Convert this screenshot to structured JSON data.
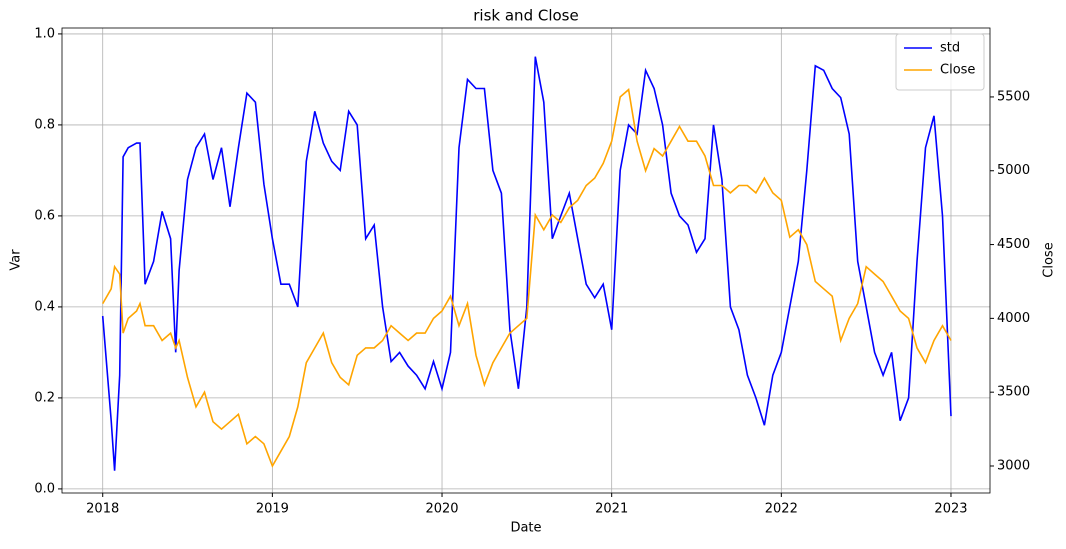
{
  "chart_data": {
    "type": "line",
    "title": "risk and Close",
    "xlabel": "Date",
    "ylabel": "Var",
    "y2label": "Close",
    "x": [
      2018.0,
      2018.05,
      2018.07,
      2018.1,
      2018.12,
      2018.15,
      2018.2,
      2018.22,
      2018.25,
      2018.3,
      2018.35,
      2018.4,
      2018.43,
      2018.45,
      2018.5,
      2018.55,
      2018.6,
      2018.65,
      2018.7,
      2018.75,
      2018.8,
      2018.85,
      2018.9,
      2018.95,
      2019.0,
      2019.05,
      2019.1,
      2019.15,
      2019.2,
      2019.25,
      2019.3,
      2019.35,
      2019.4,
      2019.45,
      2019.5,
      2019.55,
      2019.6,
      2019.65,
      2019.7,
      2019.75,
      2019.8,
      2019.85,
      2019.9,
      2019.95,
      2020.0,
      2020.05,
      2020.1,
      2020.15,
      2020.2,
      2020.25,
      2020.3,
      2020.35,
      2020.4,
      2020.45,
      2020.5,
      2020.55,
      2020.6,
      2020.65,
      2020.7,
      2020.75,
      2020.8,
      2020.85,
      2020.9,
      2020.95,
      2021.0,
      2021.05,
      2021.1,
      2021.15,
      2021.2,
      2021.25,
      2021.3,
      2021.35,
      2021.4,
      2021.45,
      2021.5,
      2021.55,
      2021.6,
      2021.65,
      2021.7,
      2021.75,
      2021.8,
      2021.85,
      2021.9,
      2021.95,
      2022.0,
      2022.05,
      2022.1,
      2022.15,
      2022.2,
      2022.25,
      2022.3,
      2022.35,
      2022.4,
      2022.45,
      2022.5,
      2022.55,
      2022.6,
      2022.65,
      2022.7,
      2022.75,
      2022.8,
      2022.85,
      2022.9,
      2022.95,
      2023.0
    ],
    "series": [
      {
        "name": "std",
        "color": "#0000ff",
        "values": [
          0.38,
          0.15,
          0.04,
          0.25,
          0.73,
          0.75,
          0.76,
          0.76,
          0.45,
          0.5,
          0.61,
          0.55,
          0.3,
          0.48,
          0.68,
          0.75,
          0.78,
          0.68,
          0.75,
          0.62,
          0.75,
          0.87,
          0.85,
          0.67,
          0.55,
          0.45,
          0.45,
          0.4,
          0.72,
          0.83,
          0.76,
          0.72,
          0.7,
          0.83,
          0.8,
          0.55,
          0.58,
          0.4,
          0.28,
          0.3,
          0.27,
          0.25,
          0.22,
          0.28,
          0.22,
          0.3,
          0.75,
          0.9,
          0.88,
          0.88,
          0.7,
          0.65,
          0.35,
          0.22,
          0.4,
          0.95,
          0.85,
          0.55,
          0.6,
          0.65,
          0.55,
          0.45,
          0.42,
          0.45,
          0.35,
          0.7,
          0.8,
          0.78,
          0.92,
          0.88,
          0.8,
          0.65,
          0.6,
          0.58,
          0.52,
          0.55,
          0.8,
          0.68,
          0.4,
          0.35,
          0.25,
          0.2,
          0.14,
          0.25,
          0.3,
          0.4,
          0.5,
          0.7,
          0.93,
          0.92,
          0.88,
          0.86,
          0.78,
          0.5,
          0.4,
          0.3,
          0.25,
          0.3,
          0.15,
          0.2,
          0.5,
          0.75,
          0.82,
          0.6,
          0.16
        ]
      },
      {
        "name": "Close",
        "color": "#ffa500",
        "axis": "y2",
        "values": [
          4100,
          4200,
          4350,
          4300,
          3900,
          4000,
          4050,
          4100,
          3950,
          3950,
          3850,
          3900,
          3800,
          3850,
          3600,
          3400,
          3500,
          3300,
          3250,
          3300,
          3350,
          3150,
          3200,
          3150,
          3000,
          3100,
          3200,
          3400,
          3700,
          3800,
          3900,
          3700,
          3600,
          3550,
          3750,
          3800,
          3800,
          3850,
          3950,
          3900,
          3850,
          3900,
          3900,
          4000,
          4050,
          4150,
          3950,
          4100,
          3750,
          3550,
          3700,
          3800,
          3900,
          3950,
          4000,
          4700,
          4600,
          4700,
          4650,
          4750,
          4800,
          4900,
          4950,
          5050,
          5200,
          5500,
          5550,
          5200,
          5000,
          5150,
          5100,
          5200,
          5300,
          5200,
          5200,
          5100,
          4900,
          4900,
          4850,
          4900,
          4900,
          4850,
          4950,
          4850,
          4800,
          4550,
          4600,
          4500,
          4250,
          4200,
          4150,
          3850,
          4000,
          4100,
          4350,
          4300,
          4250,
          4150,
          4050,
          4000,
          3800,
          3700,
          3850,
          3950,
          3850
        ]
      }
    ],
    "xlim": [
      2017.76,
      2023.23
    ],
    "xticks": [
      2018,
      2019,
      2020,
      2021,
      2022,
      2023
    ],
    "ylim": [
      -0.009,
      1.013
    ],
    "yticks": [
      {
        "value": 0,
        "label": "0.0"
      },
      0.2,
      0.4,
      0.6,
      0.8,
      {
        "value": 1,
        "label": "1.0"
      }
    ],
    "y2lim": [
      2817,
      5967
    ],
    "y2ticks": [
      3000,
      3500,
      4000,
      4500,
      5000,
      5500
    ],
    "grid": true,
    "legend": "upper right"
  }
}
